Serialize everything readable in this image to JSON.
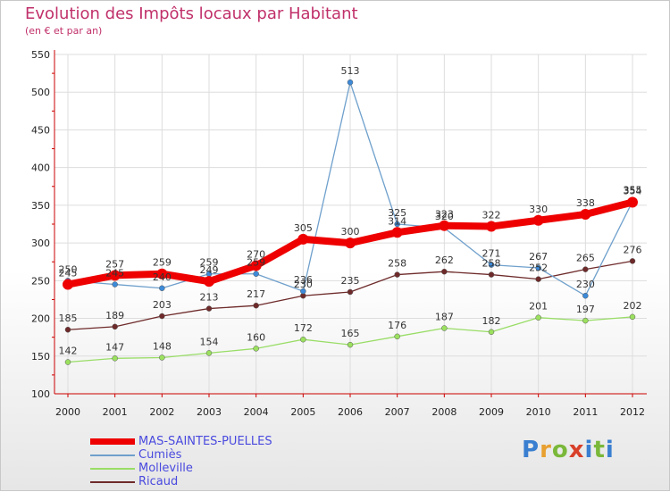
{
  "chart_data": {
    "type": "line",
    "title": "Evolution des Impôts locaux par Habitant",
    "subtitle": "(en € et par an)",
    "xlabel": "",
    "ylabel": "",
    "ylim": [
      100,
      550
    ],
    "yticks": [
      100,
      150,
      200,
      250,
      300,
      350,
      400,
      450,
      500,
      550
    ],
    "categories": [
      "2000",
      "2001",
      "2002",
      "2003",
      "2004",
      "2005",
      "2006",
      "2007",
      "2008",
      "2009",
      "2010",
      "2011",
      "2012"
    ],
    "series": [
      {
        "name": "MAS-SAINTES-PUELLES",
        "color": "#ee0000",
        "values": [
          245,
          257,
          259,
          249,
          270,
          305,
          300,
          314,
          323,
          322,
          330,
          338,
          354
        ]
      },
      {
        "name": "Cumiès",
        "color": "#6fa0cc",
        "values": [
          250,
          245,
          240,
          259,
          259,
          236,
          513,
          325,
          320,
          271,
          267,
          230,
          355
        ]
      },
      {
        "name": "Molleville",
        "color": "#99dd66",
        "values": [
          142,
          147,
          148,
          154,
          160,
          172,
          165,
          176,
          187,
          182,
          201,
          197,
          202
        ]
      },
      {
        "name": "Ricaud",
        "color": "#6e2a2a",
        "values": [
          185,
          189,
          203,
          213,
          217,
          230,
          235,
          258,
          262,
          258,
          252,
          265,
          276
        ]
      }
    ],
    "legend_position": "bottom-left"
  },
  "logo": {
    "p": "P",
    "r": "r",
    "o": "o",
    "x": "x",
    "i": "i",
    "t": "t",
    "i2": "i"
  }
}
